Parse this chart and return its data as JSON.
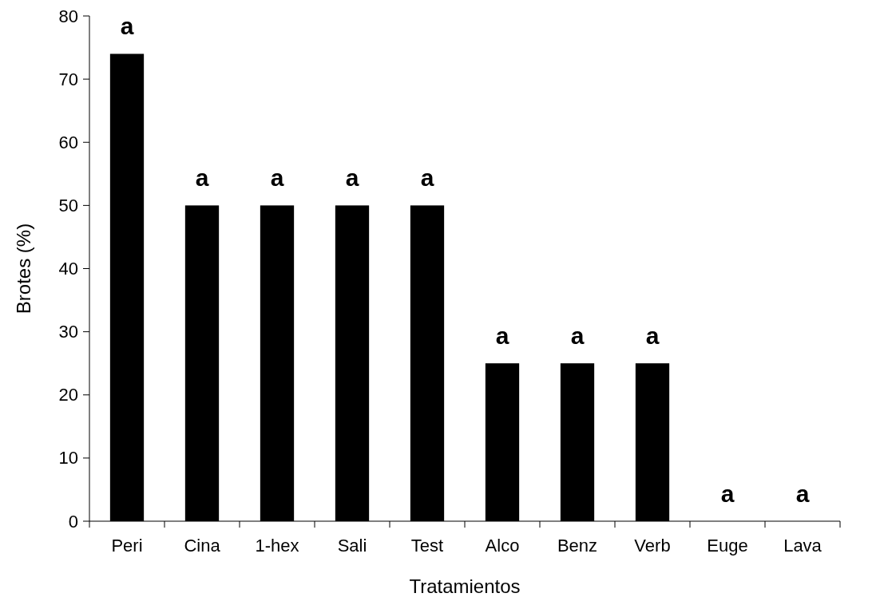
{
  "chart_data": {
    "type": "bar",
    "xlabel": "Tratamientos",
    "ylabel": "Brotes (%)",
    "categories": [
      "Peri",
      "Cina",
      "1-hex",
      "Sali",
      "Test",
      "Alco",
      "Benz",
      "Verb",
      "Euge",
      "Lava"
    ],
    "values": [
      74,
      50,
      50,
      50,
      50,
      25,
      25,
      25,
      0,
      0
    ],
    "color": "#000000",
    "ylim": [
      0,
      80
    ],
    "yticks": [
      0,
      10,
      20,
      30,
      40,
      50,
      60,
      70,
      80
    ],
    "annotations": [
      {
        "text": "a",
        "x": "Peri",
        "y": 74
      },
      {
        "text": "a",
        "x": "Cina",
        "y": 50
      },
      {
        "text": "a",
        "x": "1-hex",
        "y": 50
      },
      {
        "text": "a",
        "x": "Sali",
        "y": 50
      },
      {
        "text": "a",
        "x": "Test",
        "y": 50
      },
      {
        "text": "a",
        "x": "Alco",
        "y": 25
      },
      {
        "text": "a",
        "x": "Benz",
        "y": 25
      },
      {
        "text": "a",
        "x": "Verb",
        "y": 25
      },
      {
        "text": "a",
        "x": "Euge",
        "y": 0
      },
      {
        "text": "a",
        "x": "Lava",
        "y": 0
      }
    ]
  }
}
